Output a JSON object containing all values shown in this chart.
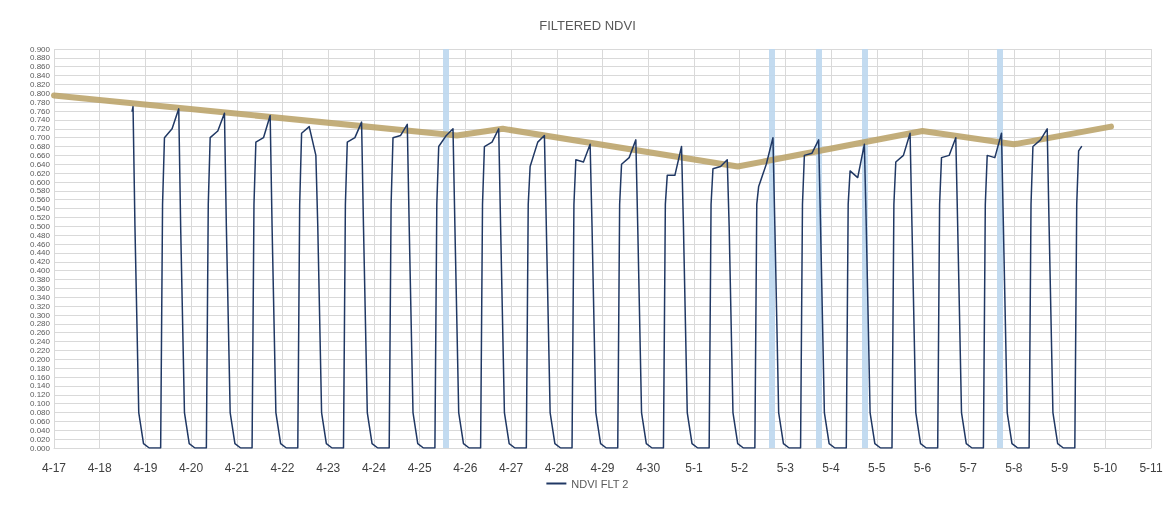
{
  "chart_data": {
    "type": "line",
    "title": "FILTERED NDVI",
    "xlim": [
      "--04-17",
      "--05-11"
    ],
    "xticks": [
      {
        "value": "--04-17",
        "label": "4-17"
      },
      {
        "value": "--04-18",
        "label": "4-18"
      },
      {
        "value": "--04-19",
        "label": "4-19"
      },
      {
        "value": "--04-20",
        "label": "4-20"
      },
      {
        "value": "--04-21",
        "label": "4-21"
      },
      {
        "value": "--04-22",
        "label": "4-22"
      },
      {
        "value": "--04-23",
        "label": "4-23"
      },
      {
        "value": "--04-24",
        "label": "4-24"
      },
      {
        "value": "--04-25",
        "label": "4-25"
      },
      {
        "value": "--04-26",
        "label": "4-26"
      },
      {
        "value": "--04-27",
        "label": "4-27"
      },
      {
        "value": "--04-28",
        "label": "4-28"
      },
      {
        "value": "--04-29",
        "label": "4-29"
      },
      {
        "value": "--04-30",
        "label": "4-30"
      },
      {
        "value": "--05-01",
        "label": "5-1"
      },
      {
        "value": "--05-02",
        "label": "5-2"
      },
      {
        "value": "--05-03",
        "label": "5-3"
      },
      {
        "value": "--05-04",
        "label": "5-4"
      },
      {
        "value": "--05-05",
        "label": "5-5"
      },
      {
        "value": "--05-06",
        "label": "5-6"
      },
      {
        "value": "--05-07",
        "label": "5-7"
      },
      {
        "value": "--05-08",
        "label": "5-8"
      },
      {
        "value": "--05-09",
        "label": "5-9"
      },
      {
        "value": "--05-10",
        "label": "5-10"
      },
      {
        "value": "--05-11",
        "label": "5-11"
      }
    ],
    "ylim": [
      0,
      0.9
    ],
    "yticks": [
      {
        "value": 0,
        "label": "0.000"
      },
      {
        "value": 0.02,
        "label": "0.020"
      },
      {
        "value": 0.04,
        "label": "0.040"
      },
      {
        "value": 0.06,
        "label": "0.060"
      },
      {
        "value": 0.08,
        "label": "0.080"
      },
      {
        "value": 0.1,
        "label": "0.100"
      },
      {
        "value": 0.12,
        "label": "0.120"
      },
      {
        "value": 0.14,
        "label": "0.140"
      },
      {
        "value": 0.16,
        "label": "0.160"
      },
      {
        "value": 0.18,
        "label": "0.180"
      },
      {
        "value": 0.2,
        "label": "0.200"
      },
      {
        "value": 0.22,
        "label": "0.220"
      },
      {
        "value": 0.24,
        "label": "0.240"
      },
      {
        "value": 0.26,
        "label": "0.260"
      },
      {
        "value": 0.28,
        "label": "0.280"
      },
      {
        "value": 0.3,
        "label": "0.300"
      },
      {
        "value": 0.32,
        "label": "0.320"
      },
      {
        "value": 0.34,
        "label": "0.340"
      },
      {
        "value": 0.36,
        "label": "0.360"
      },
      {
        "value": 0.38,
        "label": "0.380"
      },
      {
        "value": 0.4,
        "label": "0.400"
      },
      {
        "value": 0.42,
        "label": "0.420"
      },
      {
        "value": 0.44,
        "label": "0.440"
      },
      {
        "value": 0.46,
        "label": "0.460"
      },
      {
        "value": 0.48,
        "label": "0.480"
      },
      {
        "value": 0.5,
        "label": "0.500"
      },
      {
        "value": 0.52,
        "label": "0.520"
      },
      {
        "value": 0.54,
        "label": "0.540"
      },
      {
        "value": 0.56,
        "label": "0.560"
      },
      {
        "value": 0.58,
        "label": "0.580"
      },
      {
        "value": 0.6,
        "label": "0.600"
      },
      {
        "value": 0.62,
        "label": "0.620"
      },
      {
        "value": 0.64,
        "label": "0.640"
      },
      {
        "value": 0.66,
        "label": "0.660"
      },
      {
        "value": 0.68,
        "label": "0.680"
      },
      {
        "value": 0.7,
        "label": "0.700"
      },
      {
        "value": 0.72,
        "label": "0.720"
      },
      {
        "value": 0.74,
        "label": "0.740"
      },
      {
        "value": 0.76,
        "label": "0.760"
      },
      {
        "value": 0.78,
        "label": "0.780"
      },
      {
        "value": 0.8,
        "label": "0.800"
      },
      {
        "value": 0.82,
        "label": "0.820"
      },
      {
        "value": 0.84,
        "label": "0.840"
      },
      {
        "value": 0.86,
        "label": "0.860"
      },
      {
        "value": 0.88,
        "label": "0.880"
      },
      {
        "value": 0.9,
        "label": "0.900"
      }
    ],
    "grid": true,
    "legend": "bottom",
    "marker": "none",
    "ref_lines": [
      {
        "axis": "x",
        "value": "--04-25T13:40",
        "color": "#bdd7ee"
      },
      {
        "axis": "x",
        "value": "--05-02T17:00",
        "color": "#bdd7ee"
      },
      {
        "axis": "x",
        "value": "--05-03T17:20",
        "color": "#bdd7ee"
      },
      {
        "axis": "x",
        "value": "--05-04T17:45",
        "color": "#bdd7ee"
      },
      {
        "axis": "x",
        "value": "--05-07T16:50",
        "color": "#bdd7ee"
      }
    ],
    "series": [
      {
        "name": "NDVI FLT 2",
        "color": "#203864",
        "x": [
          "--04-18T17:00",
          "--04-18T17:30",
          "--04-18T18:30",
          "--04-18T20:30",
          "--04-18T23:00",
          "--04-19T02:00",
          "--04-19T08:00",
          "--04-19T09:00",
          "--04-19T10:00",
          "--04-19T14:00",
          "--04-19T17:30",
          "--04-19T18:30",
          "--04-19T20:30",
          "--04-19T23:00",
          "--04-20T02:00",
          "--04-20T08:00",
          "--04-20T09:00",
          "--04-20T10:00",
          "--04-20T14:00",
          "--04-20T17:30",
          "--04-20T18:30",
          "--04-20T20:30",
          "--04-20T23:00",
          "--04-21T02:00",
          "--04-21T08:00",
          "--04-21T09:00",
          "--04-21T10:00",
          "--04-21T14:00",
          "--04-21T17:30",
          "--04-21T18:30",
          "--04-21T20:30",
          "--04-21T23:00",
          "--04-22T02:00",
          "--04-22T08:00",
          "--04-22T09:00",
          "--04-22T10:00",
          "--04-22T14:00",
          "--04-22T17:30",
          "--04-22T18:30",
          "--04-22T20:30",
          "--04-22T23:00",
          "--04-23T02:00",
          "--04-23T08:00",
          "--04-23T09:00",
          "--04-23T10:00",
          "--04-23T14:00",
          "--04-23T17:30",
          "--04-23T18:30",
          "--04-23T20:30",
          "--04-23T23:00",
          "--04-24T02:00",
          "--04-24T08:00",
          "--04-24T09:00",
          "--04-24T10:00",
          "--04-24T14:00",
          "--04-24T17:30",
          "--04-24T18:30",
          "--04-24T20:30",
          "--04-24T23:00",
          "--04-25T02:00",
          "--04-25T08:00",
          "--04-25T09:00",
          "--04-25T10:00",
          "--04-25T14:00",
          "--04-25T17:30",
          "--04-25T18:30",
          "--04-25T20:30",
          "--04-25T23:00",
          "--04-26T02:00",
          "--04-26T08:00",
          "--04-26T09:00",
          "--04-26T10:00",
          "--04-26T14:00",
          "--04-26T17:30",
          "--04-26T18:30",
          "--04-26T20:30",
          "--04-26T23:00",
          "--04-27T02:00",
          "--04-27T08:00",
          "--04-27T09:00",
          "--04-27T10:00",
          "--04-27T14:00",
          "--04-27T17:30",
          "--04-27T18:30",
          "--04-27T20:30",
          "--04-27T23:00",
          "--04-28T02:00",
          "--04-28T08:00",
          "--04-28T09:00",
          "--04-28T10:00",
          "--04-28T14:00",
          "--04-28T17:30",
          "--04-28T18:30",
          "--04-28T20:30",
          "--04-28T23:00",
          "--04-29T02:00",
          "--04-29T08:00",
          "--04-29T09:00",
          "--04-29T10:00",
          "--04-29T14:00",
          "--04-29T17:30",
          "--04-29T18:30",
          "--04-29T20:30",
          "--04-29T23:00",
          "--04-30T02:00",
          "--04-30T08:00",
          "--04-30T09:00",
          "--04-30T10:00",
          "--04-30T14:00",
          "--04-30T17:30",
          "--04-30T18:30",
          "--04-30T20:30",
          "--04-30T23:00",
          "--05-01T02:00",
          "--05-01T08:00",
          "--05-01T09:00",
          "--05-01T10:00",
          "--05-01T14:00",
          "--05-01T17:30",
          "--05-01T18:30",
          "--05-01T20:30",
          "--05-01T23:00",
          "--05-02T02:00",
          "--05-02T08:00",
          "--05-02T09:00",
          "--05-02T10:00",
          "--05-02T14:00",
          "--05-02T17:30",
          "--05-02T18:30",
          "--05-02T20:30",
          "--05-02T23:00",
          "--05-03T02:00",
          "--05-03T08:00",
          "--05-03T09:00",
          "--05-03T10:00",
          "--05-03T14:00",
          "--05-03T17:30",
          "--05-03T18:30",
          "--05-03T20:30",
          "--05-03T23:00",
          "--05-04T02:00",
          "--05-04T08:00",
          "--05-04T09:00",
          "--05-04T10:00",
          "--05-04T14:00",
          "--05-04T17:30",
          "--05-04T18:30",
          "--05-04T20:30",
          "--05-04T23:00",
          "--05-05T02:00",
          "--05-05T08:00",
          "--05-05T09:00",
          "--05-05T10:00",
          "--05-05T14:00",
          "--05-05T17:30",
          "--05-05T18:30",
          "--05-05T20:30",
          "--05-05T23:00",
          "--05-06T02:00",
          "--05-06T08:00",
          "--05-06T09:00",
          "--05-06T10:00",
          "--05-06T14:00",
          "--05-06T17:30",
          "--05-06T18:30",
          "--05-06T20:30",
          "--05-06T23:00",
          "--05-07T02:00",
          "--05-07T08:00",
          "--05-07T09:00",
          "--05-07T10:00",
          "--05-07T14:00",
          "--05-07T17:30",
          "--05-07T18:30",
          "--05-07T20:30",
          "--05-07T23:00",
          "--05-08T02:00",
          "--05-08T08:00",
          "--05-08T09:00",
          "--05-08T10:00",
          "--05-08T14:00",
          "--05-08T17:30",
          "--05-08T18:30",
          "--05-08T20:30",
          "--05-08T23:00",
          "--05-09T02:00",
          "--05-09T08:00",
          "--05-09T09:00",
          "--05-09T10:00",
          "--05-09T11:30"
        ],
        "values": [
          0.76,
          0.77,
          0.5,
          0.08,
          0.01,
          0,
          0,
          0.55,
          0.7,
          0.72,
          0.765,
          0.5,
          0.08,
          0.01,
          0,
          0,
          0.55,
          0.7,
          0.715,
          0.755,
          0.5,
          0.08,
          0.01,
          0,
          0,
          0.55,
          0.69,
          0.7,
          0.75,
          0.5,
          0.08,
          0.01,
          0,
          0,
          0.55,
          0.71,
          0.725,
          0.66,
          0.5,
          0.08,
          0.01,
          0,
          0,
          0.55,
          0.69,
          0.7,
          0.735,
          0.5,
          0.08,
          0.01,
          0,
          0,
          0.55,
          0.7,
          0.705,
          0.73,
          0.5,
          0.08,
          0.01,
          0,
          0,
          0.55,
          0.68,
          0.705,
          0.72,
          0.5,
          0.08,
          0.01,
          0,
          0,
          0.55,
          0.68,
          0.69,
          0.72,
          0.5,
          0.08,
          0.01,
          0,
          0,
          0.55,
          0.635,
          0.69,
          0.705,
          0.5,
          0.08,
          0.01,
          0,
          0,
          0.55,
          0.65,
          0.645,
          0.685,
          0.5,
          0.08,
          0.01,
          0,
          0,
          0.55,
          0.64,
          0.655,
          0.695,
          0.5,
          0.08,
          0.01,
          0,
          0,
          0.55,
          0.615,
          0.615,
          0.68,
          0.5,
          0.08,
          0.01,
          0,
          0,
          0.55,
          0.63,
          0.635,
          0.65,
          0.5,
          0.08,
          0.01,
          0,
          0,
          0.55,
          0.59,
          0.64,
          0.7,
          0.5,
          0.08,
          0.01,
          0,
          0,
          0.55,
          0.66,
          0.665,
          0.695,
          0.5,
          0.08,
          0.01,
          0,
          0,
          0.55,
          0.625,
          0.61,
          0.685,
          0.5,
          0.08,
          0.01,
          0,
          0,
          0.55,
          0.645,
          0.66,
          0.71,
          0.5,
          0.08,
          0.01,
          0,
          0,
          0.55,
          0.655,
          0.66,
          0.7,
          0.5,
          0.08,
          0.01,
          0,
          0,
          0.55,
          0.66,
          0.655,
          0.71,
          0.5,
          0.08,
          0.01,
          0,
          0,
          0.55,
          0.68,
          0.695,
          0.72,
          0.5,
          0.08,
          0.01,
          0,
          0,
          0.55,
          0.67,
          0.68
        ]
      },
      {
        "color": "#b8a064",
        "x": [
          "--04-17T00:00",
          "--04-25T19:30",
          "--04-26T19:40",
          "--05-01T23:00",
          "--05-06T00:00",
          "--05-08T00:00",
          "--05-10T03:00"
        ],
        "values": [
          0.795,
          0.705,
          0.72,
          0.635,
          0.715,
          0.685,
          0.725
        ]
      }
    ]
  }
}
